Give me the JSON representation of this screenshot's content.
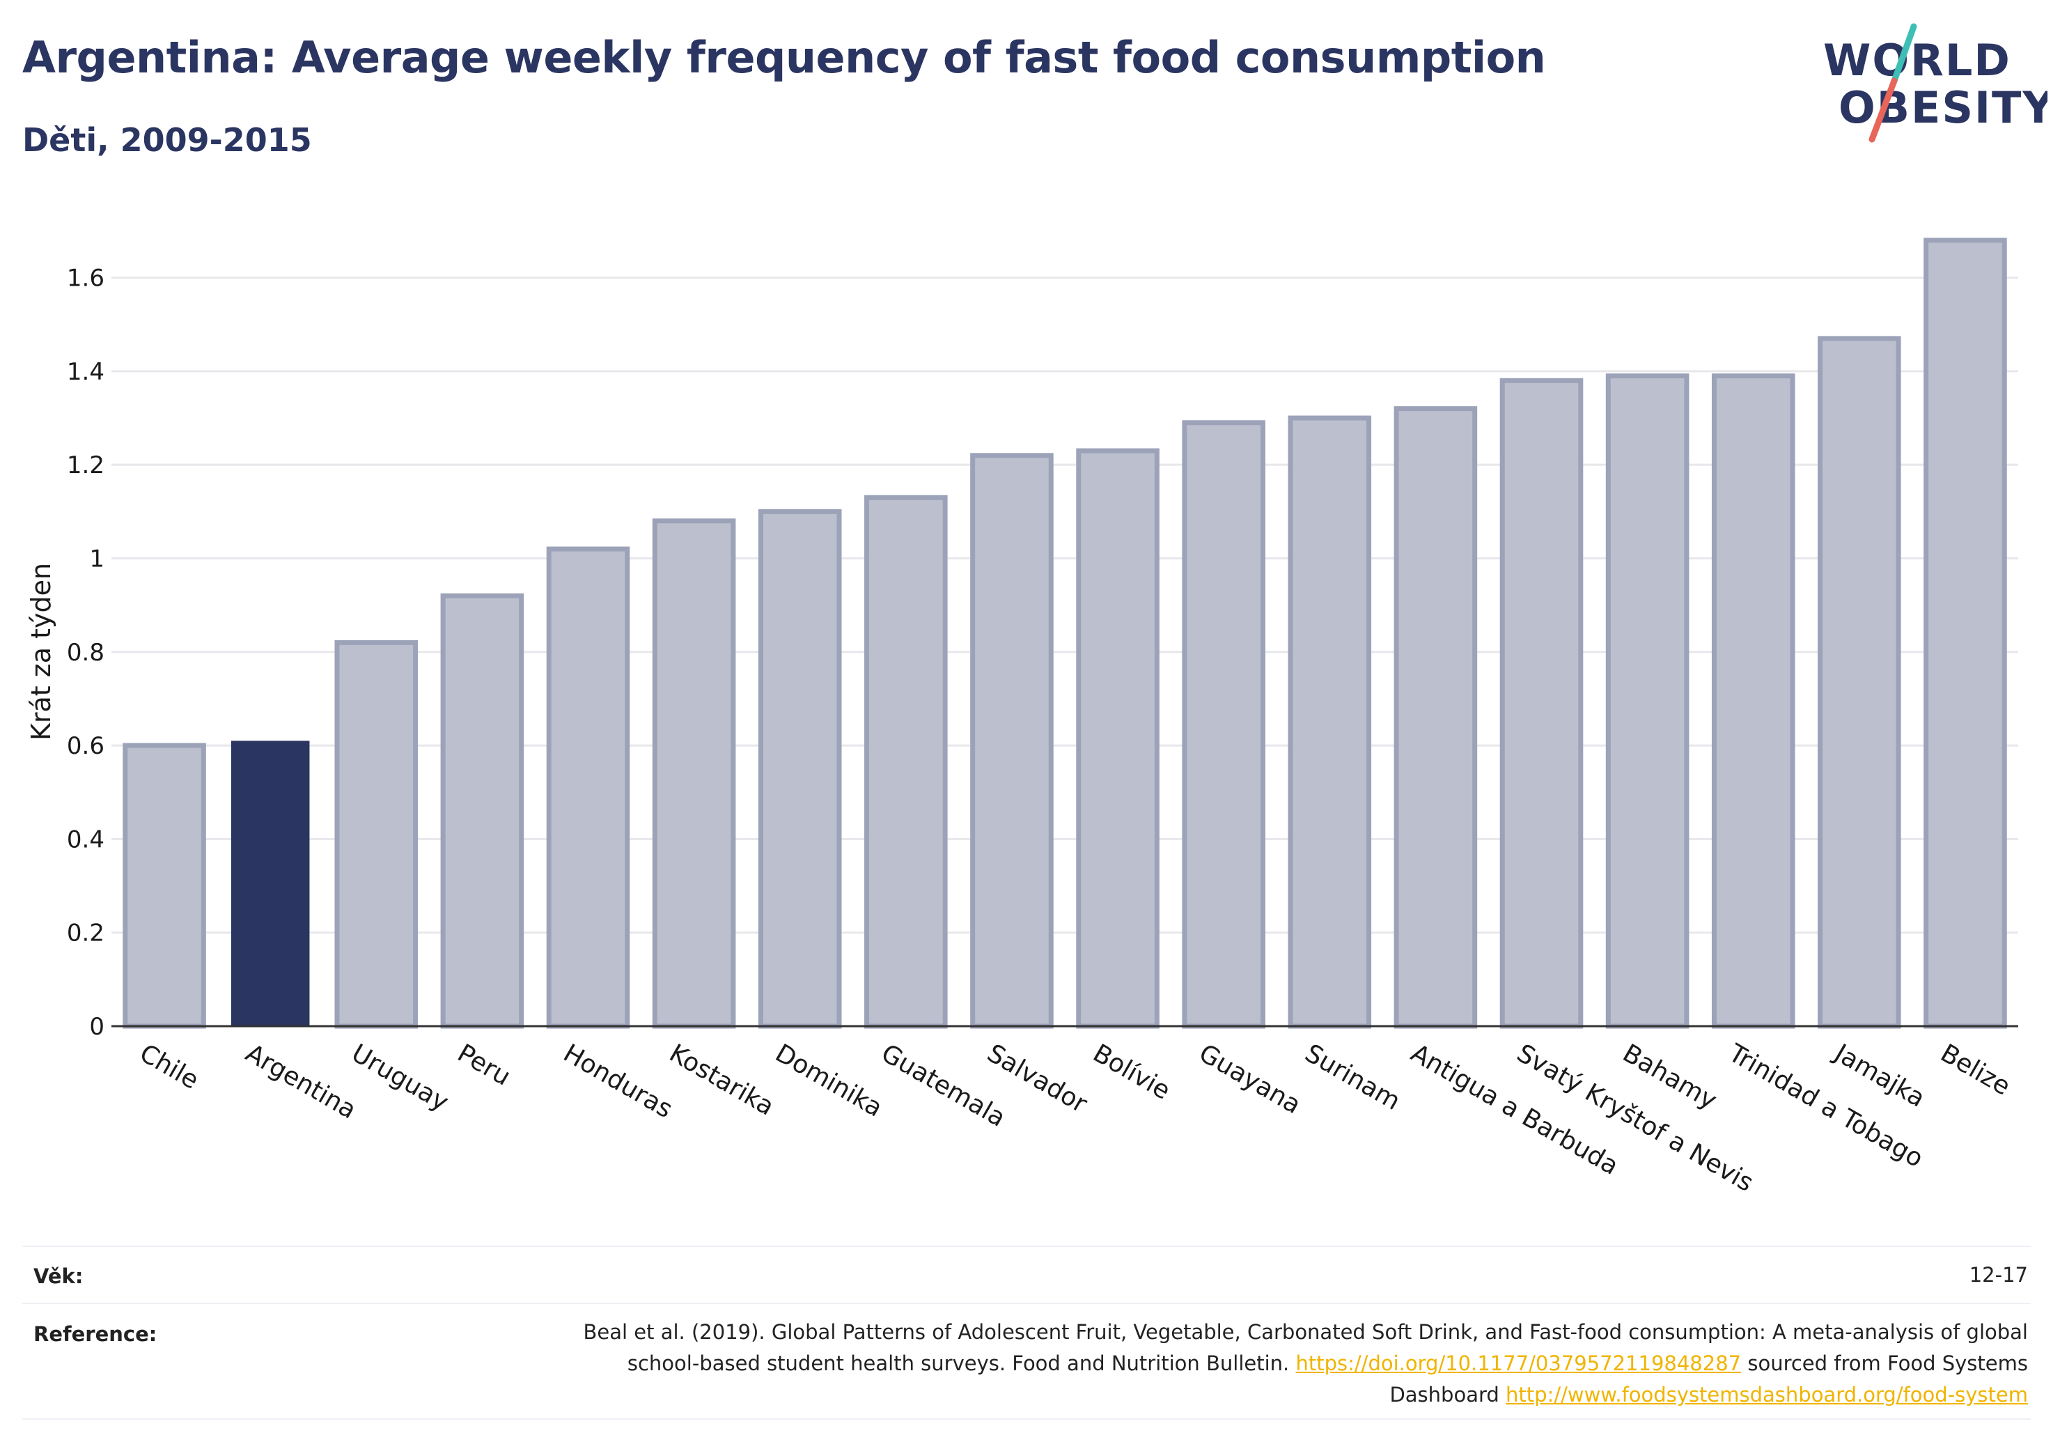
{
  "header": {
    "title": "Argentina: Average weekly frequency of fast food consumption",
    "subtitle": "Děti, 2009-2015"
  },
  "logo": {
    "line1": "WORLD",
    "line2": "OBESITY",
    "text_color": "#2b3561",
    "slash_colors": [
      "#3ebfb5",
      "#e8655a"
    ]
  },
  "colors": {
    "highlight_bar": "#2b3561",
    "default_bar_fill": "#bcc0ce",
    "default_bar_stroke": "#9ca2b8",
    "grid": "#e8e8ec",
    "axis": "#333333",
    "link": "#f0b400"
  },
  "chart_data": {
    "type": "bar",
    "title": "",
    "xlabel": "",
    "ylabel": "Krát za týden",
    "ylim": [
      0,
      1.72
    ],
    "yticks": [
      0,
      0.2,
      0.4,
      0.6,
      0.8,
      1,
      1.2,
      1.4,
      1.6
    ],
    "ytick_labels": [
      "0",
      "0.2",
      "0.4",
      "0.6",
      "0.8",
      "1",
      "1.2",
      "1.4",
      "1.6"
    ],
    "grid": true,
    "highlight": "Argentina",
    "categories": [
      "Chile",
      "Argentina",
      "Uruguay",
      "Peru",
      "Honduras",
      "Kostarika",
      "Dominika",
      "Guatemala",
      "Salvador",
      "Bolívie",
      "Guayana",
      "Surinam",
      "Antigua a Barbuda",
      "Svatý Kryštof a Nevis",
      "Bahamy",
      "Trinidad a Tobago",
      "Jamajka",
      "Belize"
    ],
    "values": [
      0.6,
      0.61,
      0.82,
      0.92,
      1.02,
      1.08,
      1.1,
      1.13,
      1.22,
      1.23,
      1.29,
      1.3,
      1.32,
      1.38,
      1.39,
      1.39,
      1.47,
      1.68
    ]
  },
  "footer": {
    "age_label": "Věk:",
    "age_value": "12-17",
    "reference_label": "Reference:",
    "reference_text_1": "Beal et al. (2019). Global Patterns of Adolescent Fruit, Vegetable, Carbonated Soft Drink, and Fast-food consumption: A meta-analysis of global school-based student health surveys. Food and Nutrition Bulletin.",
    "reference_link_1": "https://doi.org/10.1177/0379572119848287",
    "reference_text_2": "sourced from Food Systems Dashboard",
    "reference_link_2": "http://www.foodsystemsdashboard.org/food-system"
  }
}
